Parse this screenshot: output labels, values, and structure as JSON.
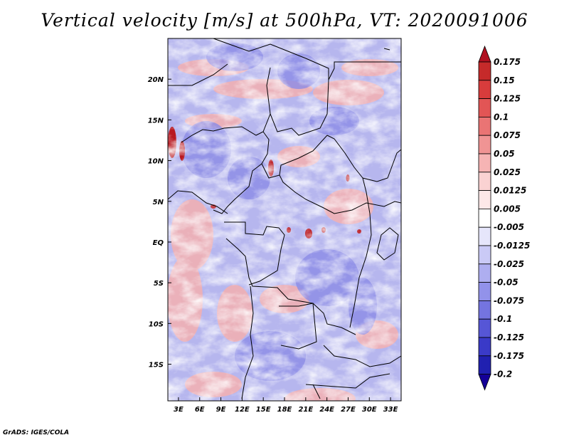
{
  "title": "Vertical velocity [m/s] at 500hPa, VT: 2020091006",
  "credit": "GrADS: IGES/COLA",
  "chart_data": {
    "type": "heatmap",
    "variable": "Vertical velocity",
    "units": "m/s",
    "level": "500hPa",
    "valid_time": "2020091006",
    "x_ticks": [
      "3E",
      "6E",
      "9E",
      "12E",
      "15E",
      "18E",
      "21E",
      "24E",
      "27E",
      "30E",
      "33E"
    ],
    "y_ticks": [
      "20N",
      "15N",
      "10N",
      "5N",
      "EQ",
      "5S",
      "10S",
      "15S"
    ],
    "lon_range": [
      1.5,
      34.5
    ],
    "lat_range": [
      -19.5,
      25.0
    ],
    "colorbar": {
      "levels": [
        "0.175",
        "0.15",
        "0.125",
        "0.1",
        "0.075",
        "0.05",
        "0.025",
        "0.0125",
        "0.005",
        "-0.005",
        "-0.0125",
        "-0.025",
        "-0.05",
        "-0.075",
        "-0.1",
        "-0.125",
        "-0.175",
        "-0.2"
      ],
      "colors": [
        "#b01020",
        "#c62a2a",
        "#d83c3c",
        "#e25555",
        "#ea7474",
        "#f09494",
        "#f6b4b4",
        "#fad2d2",
        "#fde8e8",
        "#ffffff",
        "#e6e6fb",
        "#cacaf6",
        "#aeaef0",
        "#9292ea",
        "#7474e0",
        "#5656d6",
        "#3a3ac8",
        "#2020b0",
        "#140098"
      ],
      "extend": "both"
    }
  }
}
